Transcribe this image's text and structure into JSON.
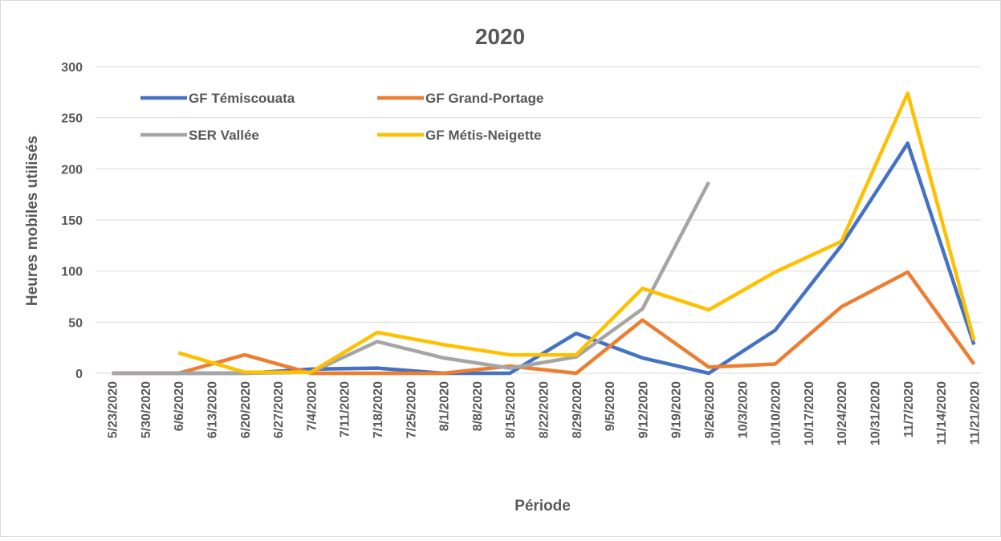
{
  "chart_data": {
    "type": "line",
    "title": "2020",
    "x_label": "Période",
    "y_label": "Heures mobiles utilisés",
    "categories": [
      "5/23/2020",
      "5/30/2020",
      "6/6/2020",
      "6/13/2020",
      "6/20/2020",
      "6/27/2020",
      "7/4/2020",
      "7/11/2020",
      "7/18/2020",
      "7/25/2020",
      "8/1/2020",
      "8/8/2020",
      "8/15/2020",
      "8/22/2020",
      "8/29/2020",
      "9/5/2020",
      "9/12/2020",
      "9/19/2020",
      "9/26/2020",
      "10/3/2020",
      "10/10/2020",
      "10/17/2020",
      "10/24/2020",
      "10/31/2020",
      "11/7/2020",
      "11/14/2020",
      "11/21/2020"
    ],
    "series": [
      {
        "name": "GF Témiscouata",
        "color": "#4472c4",
        "values": [
          0,
          0,
          0,
          0,
          0,
          2,
          4,
          4.5,
          5,
          2.5,
          0,
          0,
          0,
          19.5,
          39,
          27,
          15,
          7.5,
          0,
          21,
          42,
          83.5,
          125,
          175,
          225,
          126.5,
          28
        ]
      },
      {
        "name": "GF Grand-Portage",
        "color": "#ed7d31",
        "values": [
          0,
          0,
          0,
          9,
          18,
          9,
          0,
          0,
          0,
          0,
          0,
          3.5,
          7,
          3.5,
          0,
          26,
          52,
          29,
          6,
          7.5,
          9,
          37,
          65,
          82,
          99,
          54,
          9
        ]
      },
      {
        "name": "SER Vallée",
        "color": "#a5a5a5",
        "values": [
          0,
          0,
          0,
          0,
          0,
          0.5,
          1,
          16,
          31,
          23,
          15,
          10,
          5,
          10.5,
          16,
          39.5,
          63,
          125,
          187,
          null,
          null,
          null,
          null,
          null,
          null,
          null,
          null
        ]
      },
      {
        "name": "GF Métis-Neigette",
        "color": "#ffc000",
        "values": [
          null,
          null,
          20,
          10.5,
          1,
          1,
          1,
          20.5,
          40,
          34,
          28,
          23,
          18,
          18,
          18,
          50.5,
          83,
          72.5,
          62,
          80.5,
          99,
          114,
          129,
          201.5,
          274,
          153,
          32
        ]
      }
    ],
    "ylim": [
      0,
      300
    ],
    "yticks": [
      0,
      50,
      100,
      150,
      200,
      250,
      300
    ],
    "grid": true,
    "legend": "top-left"
  }
}
